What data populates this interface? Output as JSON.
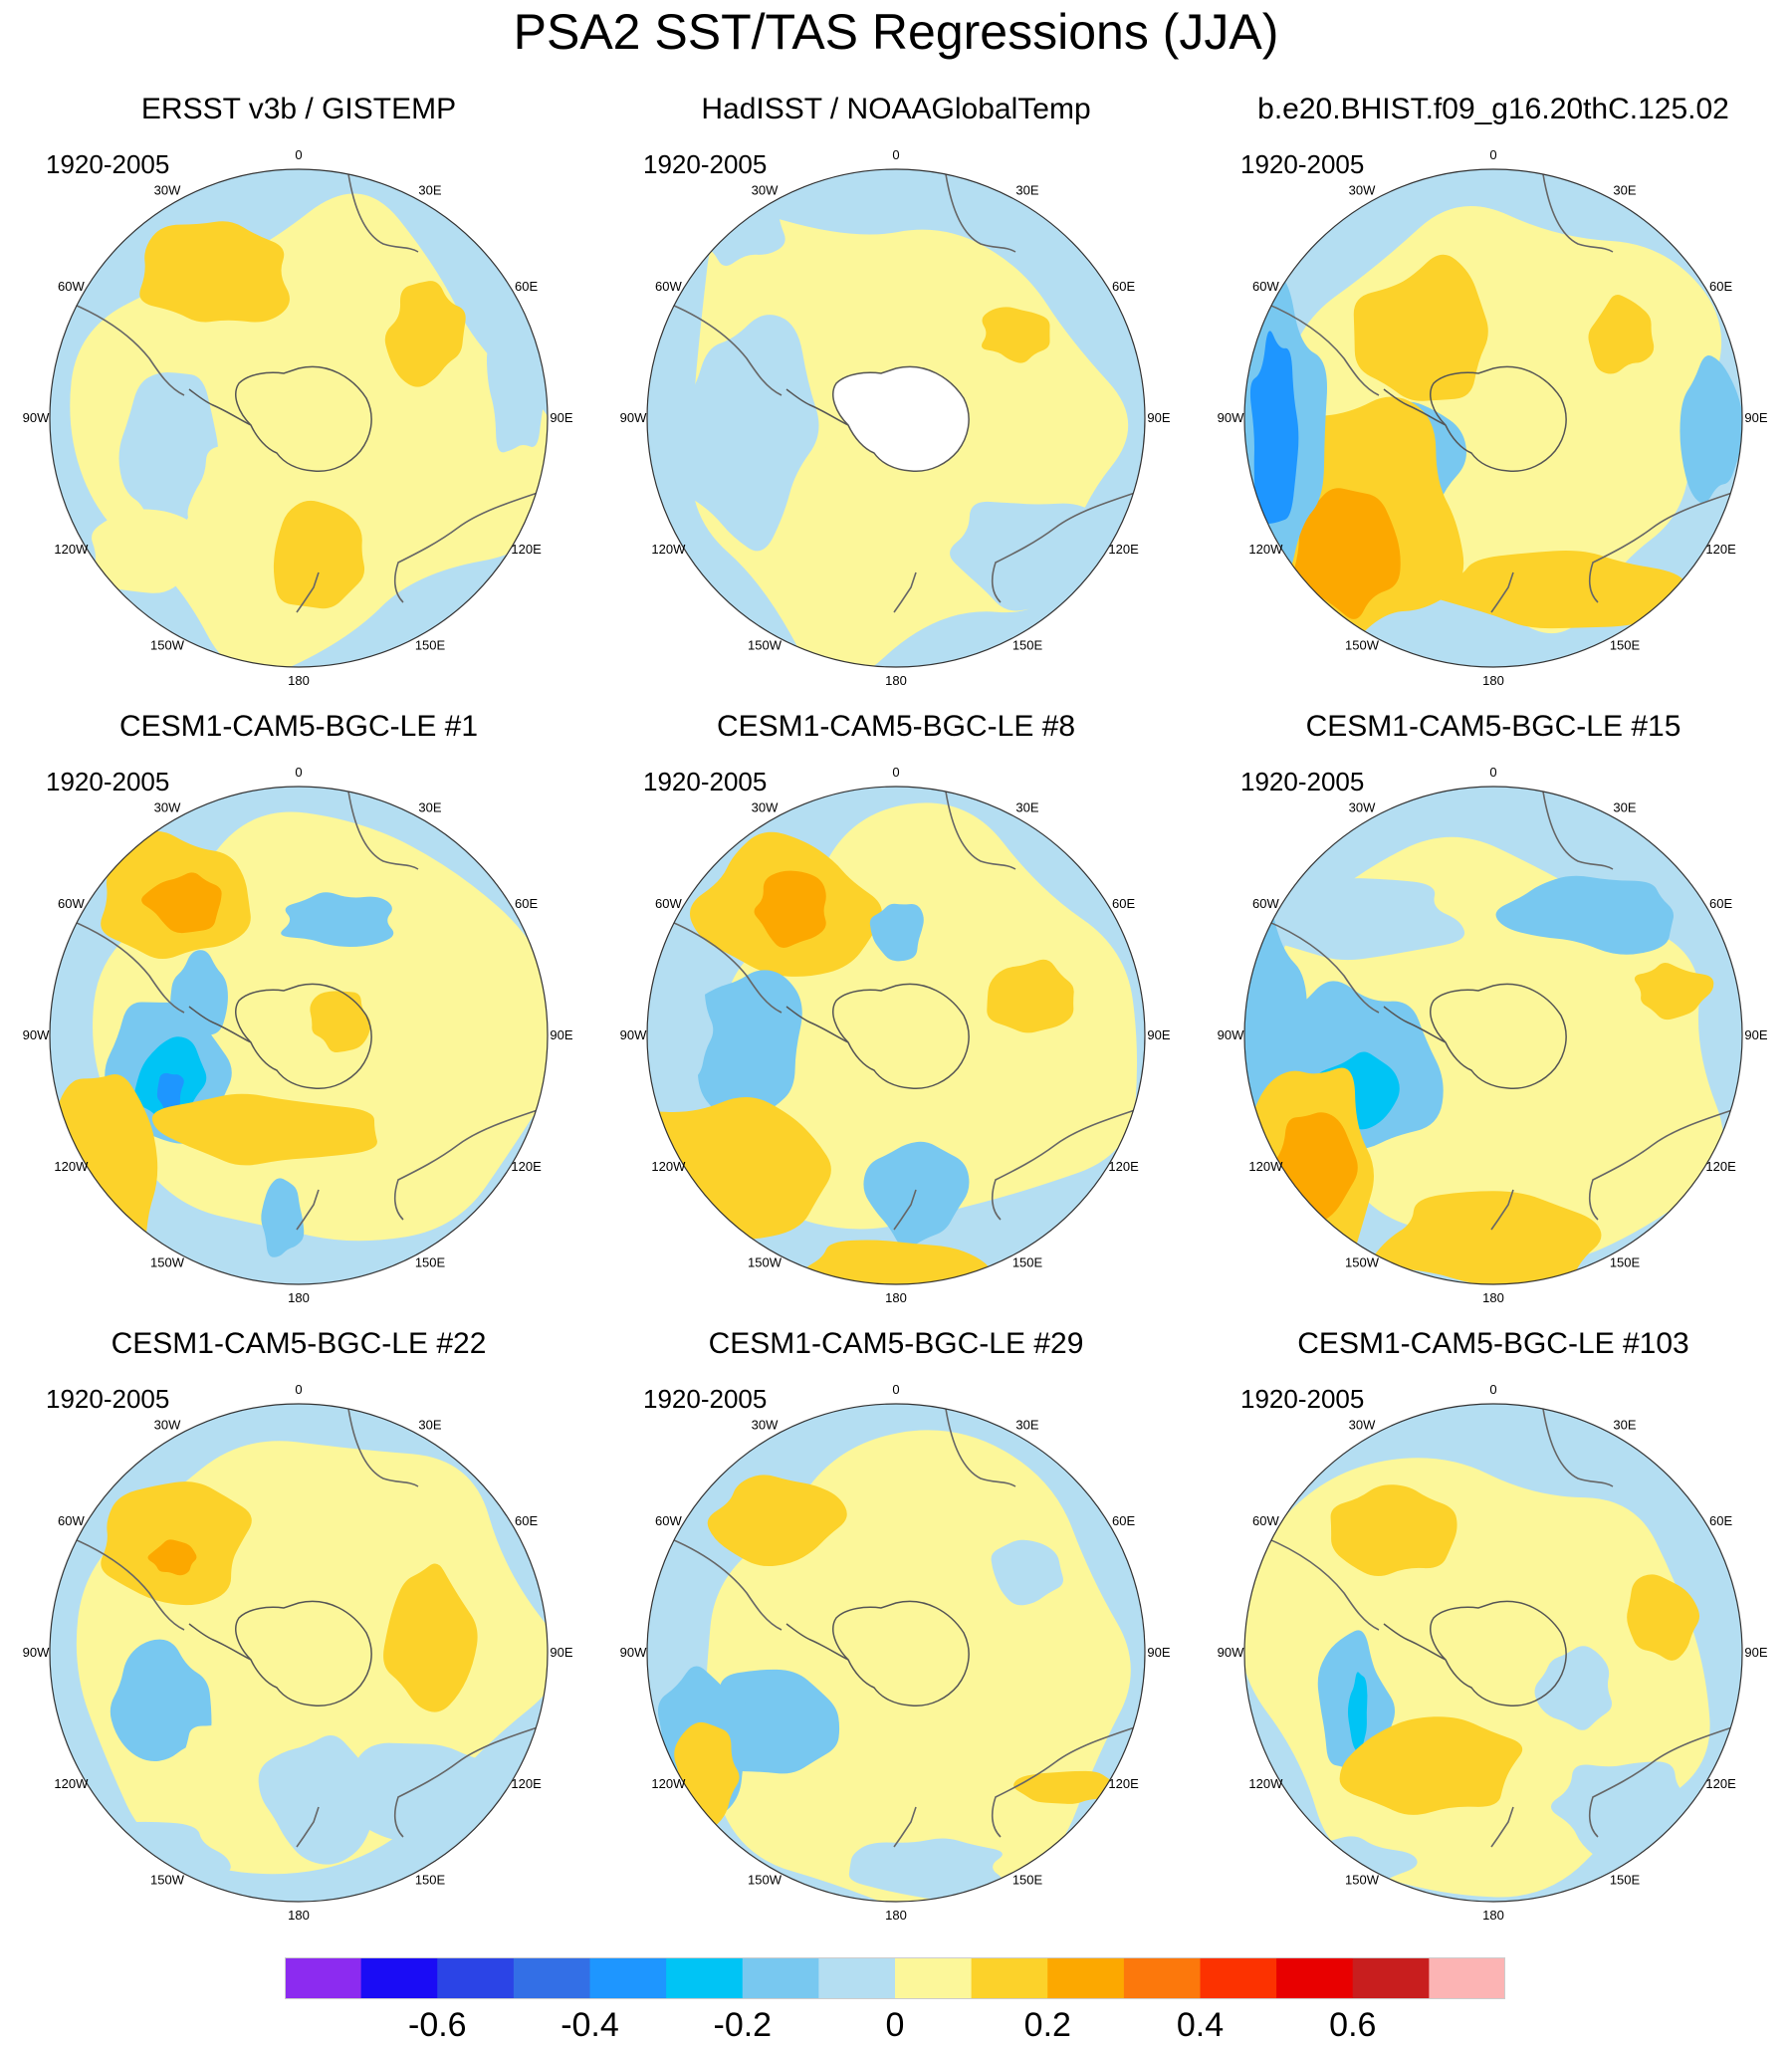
{
  "title": "PSA2 SST/TAS Regressions (JJA)",
  "panels": [
    {
      "title": "ERSST v3b / GISTEMP",
      "period": "1920-2005"
    },
    {
      "title": "HadISST / NOAAGlobalTemp",
      "period": "1920-2005"
    },
    {
      "title": "b.e20.BHIST.f09_g16.20thC.125.02",
      "period": "1920-2005"
    },
    {
      "title": "CESM1-CAM5-BGC-LE #1",
      "period": "1920-2005"
    },
    {
      "title": "CESM1-CAM5-BGC-LE #8",
      "period": "1920-2005"
    },
    {
      "title": "CESM1-CAM5-BGC-LE #15",
      "period": "1920-2005"
    },
    {
      "title": "CESM1-CAM5-BGC-LE #22",
      "period": "1920-2005"
    },
    {
      "title": "CESM1-CAM5-BGC-LE #29",
      "period": "1920-2005"
    },
    {
      "title": "CESM1-CAM5-BGC-LE #103",
      "period": "1920-2005"
    }
  ],
  "longitude_labels": [
    "0",
    "30E",
    "60E",
    "90E",
    "120E",
    "150E",
    "180",
    "150W",
    "120W",
    "90W",
    "60W",
    "30W"
  ],
  "colorbar": {
    "colors": [
      "#8c2bf0",
      "#1a0cf5",
      "#2b44e6",
      "#336fe6",
      "#1e96ff",
      "#00c4f5",
      "#78c8f0",
      "#b4def2",
      "#fcf79a",
      "#fcd22a",
      "#fca800",
      "#fc780c",
      "#fc3200",
      "#e80000",
      "#c81e1e",
      "#fcb4b4"
    ],
    "labels": [
      "-0.6",
      "-0.4",
      "-0.2",
      "0",
      "0.2",
      "0.4",
      "0.6"
    ],
    "label_values": [
      -0.6,
      -0.4,
      -0.2,
      0,
      0.2,
      0.4,
      0.6
    ],
    "levels": [
      -0.7,
      -0.6,
      -0.5,
      -0.4,
      -0.3,
      -0.2,
      -0.1,
      0,
      0.1,
      0.2,
      0.3,
      0.4,
      0.5,
      0.6,
      0.7
    ]
  },
  "chart_data": {
    "type": "heatmap",
    "title": "PSA2 SST/TAS Regressions (JJA)",
    "projection": "south polar stereographic",
    "variable": "SST/TAS regression",
    "contour_levels": [
      -0.7,
      -0.6,
      -0.5,
      -0.4,
      -0.3,
      -0.2,
      -0.1,
      0,
      0.1,
      0.2,
      0.3,
      0.4,
      0.5,
      0.6,
      0.7
    ],
    "panels": [
      "ERSST v3b / GISTEMP",
      "HadISST / NOAAGlobalTemp",
      "b.e20.BHIST.f09_g16.20thC.125.02",
      "CESM1-CAM5-BGC-LE #1",
      "CESM1-CAM5-BGC-LE #8",
      "CESM1-CAM5-BGC-LE #15",
      "CESM1-CAM5-BGC-LE #22",
      "CESM1-CAM5-BGC-LE #29",
      "CESM1-CAM5-BGC-LE #103"
    ]
  }
}
